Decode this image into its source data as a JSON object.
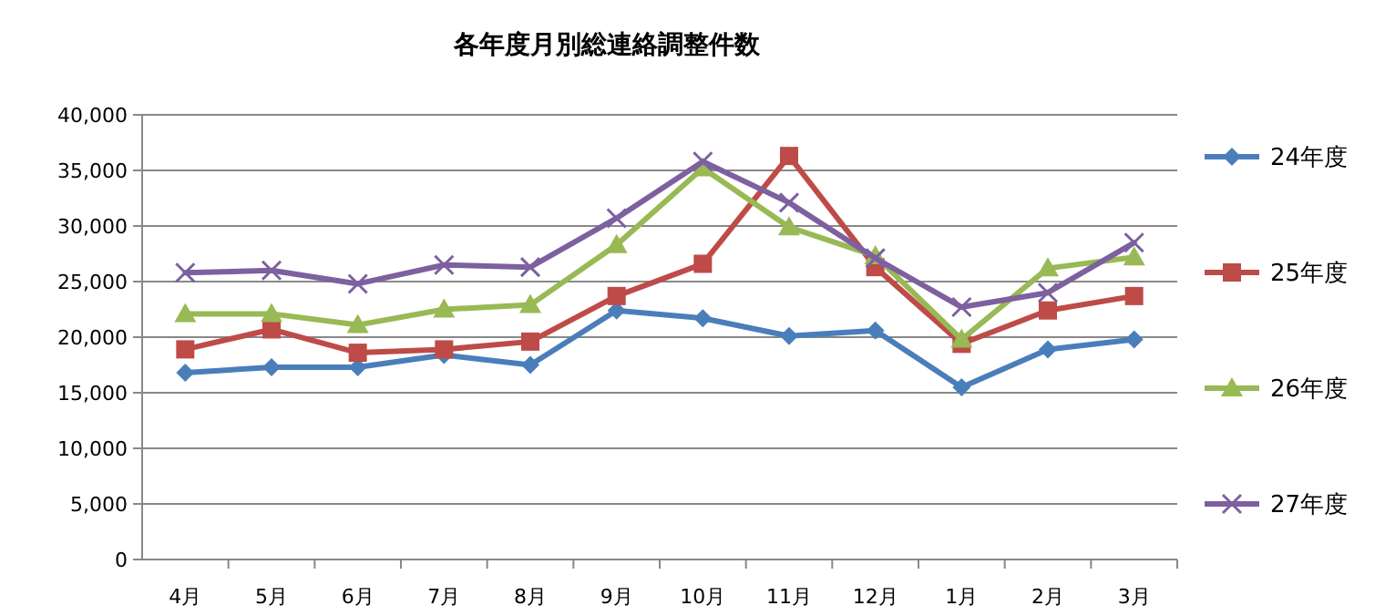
{
  "chart_data": {
    "type": "line",
    "title": "各年度月別総連絡調整件数",
    "categories": [
      "4月",
      "5月",
      "6月",
      "7月",
      "8月",
      "9月",
      "10月",
      "11月",
      "12月",
      "1月",
      "2月",
      "3月"
    ],
    "series": [
      {
        "name": "24年度",
        "color": "#4a7ebb",
        "marker": "diamond",
        "values": [
          16800,
          17300,
          17300,
          18400,
          17500,
          22400,
          21700,
          20100,
          20600,
          15500,
          18900,
          19800
        ]
      },
      {
        "name": "25年度",
        "color": "#be4b48",
        "marker": "square",
        "values": [
          18900,
          20700,
          18600,
          18900,
          19600,
          23700,
          26600,
          36300,
          26300,
          19400,
          22400,
          23700
        ]
      },
      {
        "name": "26年度",
        "color": "#98b954",
        "marker": "triangle",
        "values": [
          22100,
          22100,
          21100,
          22500,
          22900,
          28300,
          35200,
          29900,
          27300,
          19800,
          26200,
          27200
        ]
      },
      {
        "name": "27年度",
        "color": "#7d60a0",
        "marker": "cross",
        "values": [
          25800,
          26000,
          24800,
          26500,
          26300,
          30700,
          35800,
          32100,
          27100,
          22700,
          24000,
          28500
        ]
      }
    ],
    "ylim": [
      0,
      40000
    ],
    "yticks": [
      {
        "value": 0,
        "label": "0"
      },
      {
        "value": 5000,
        "label": "5,000"
      },
      {
        "value": 10000,
        "label": "10,000"
      },
      {
        "value": 15000,
        "label": "15,000"
      },
      {
        "value": 20000,
        "label": "20,000"
      },
      {
        "value": 25000,
        "label": "25,000"
      },
      {
        "value": 30000,
        "label": "30,000"
      },
      {
        "value": 35000,
        "label": "35,000"
      },
      {
        "value": 40000,
        "label": "40,000"
      }
    ],
    "grid": "y",
    "legend": "right",
    "line_style": "solid"
  }
}
